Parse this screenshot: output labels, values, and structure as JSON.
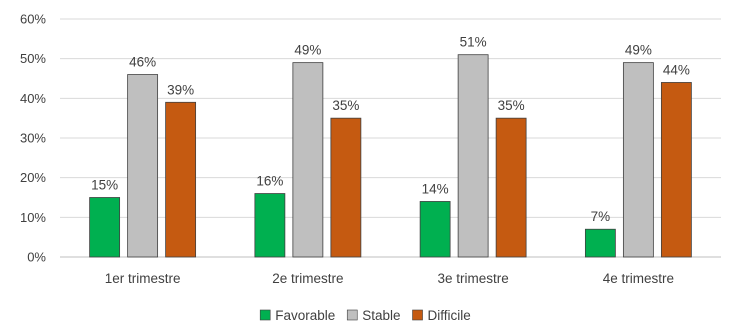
{
  "chart_data": {
    "type": "bar",
    "title": "",
    "xlabel": "",
    "ylabel": "",
    "ylim": [
      0,
      60
    ],
    "y_ticks": [
      0,
      10,
      20,
      30,
      40,
      50,
      60
    ],
    "y_tick_labels": [
      "0%",
      "10%",
      "20%",
      "30%",
      "40%",
      "50%",
      "60%"
    ],
    "grid": true,
    "legend_position": "bottom",
    "categories": [
      "1er trimestre",
      "2e trimestre",
      "3e trimestre",
      "4e trimestre"
    ],
    "series": [
      {
        "name": "Favorable",
        "color": "#00b050",
        "values": [
          15,
          16,
          14,
          7
        ],
        "labels": [
          "15%",
          "16%",
          "14%",
          "7%"
        ]
      },
      {
        "name": "Stable",
        "color": "#bfbfbf",
        "values": [
          46,
          49,
          51,
          49
        ],
        "labels": [
          "46%",
          "49%",
          "51%",
          "49%"
        ]
      },
      {
        "name": "Difficile",
        "color": "#c55a11",
        "values": [
          39,
          35,
          35,
          44
        ],
        "labels": [
          "39%",
          "35%",
          "35%",
          "44%"
        ]
      }
    ]
  }
}
